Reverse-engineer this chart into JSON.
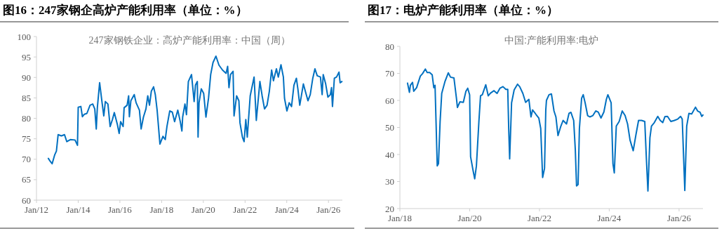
{
  "chart_data": [
    {
      "type": "line",
      "title": "图16：247家钢企高炉产能利用率（单位：%）",
      "subtitle": "247家钢铁企业：高炉产能利用率：中国（周）",
      "xlim": [
        "2012-01-01",
        "2026-09-01"
      ],
      "ylim": [
        60,
        100
      ],
      "yticks": [
        60,
        65,
        70,
        75,
        80,
        85,
        90,
        95,
        100
      ],
      "xticks": [
        {
          "value": "2012-01-01",
          "label": "Jan/12"
        },
        {
          "value": "2014-01-01",
          "label": "Jan/14"
        },
        {
          "value": "2016-01-01",
          "label": "Jan/16"
        },
        {
          "value": "2018-01-01",
          "label": "Jan/18"
        },
        {
          "value": "2020-01-01",
          "label": "Jan/20"
        },
        {
          "value": "2022-01-01",
          "label": "Jan/22"
        },
        {
          "value": "2024-01-01",
          "label": "Jan/24"
        },
        {
          "value": "2026-01-01",
          "label": "Jan/26"
        }
      ],
      "grid": false,
      "series": [
        {
          "color": "#0070c0",
          "x": [
            "2012-07-27",
            "2012-09-02",
            "2012-10-01",
            "2012-11-16",
            "2012-12-15",
            "2013-01-14",
            "2013-03-12",
            "2013-05-06",
            "2013-06-15",
            "2013-08-16",
            "2013-11-06",
            "2013-12-19",
            "2014-01-01",
            "2014-02-16",
            "2014-03-15",
            "2014-04-18",
            "2014-06-02",
            "2014-07-27",
            "2014-09-12",
            "2014-10-18",
            "2014-11-13",
            "2014-12-02",
            "2015-01-11",
            "2015-02-23",
            "2015-03-25",
            "2015-04-21",
            "2015-06-05",
            "2015-07-14",
            "2015-08-23",
            "2015-09-25",
            "2015-11-16",
            "2015-12-19",
            "2016-01-14",
            "2016-02-26",
            "2016-03-15",
            "2016-05-06",
            "2016-06-02",
            "2016-06-15",
            "2016-07-11",
            "2016-09-08",
            "2016-10-11",
            "2016-12-08",
            "2017-01-07",
            "2017-02-16",
            "2017-04-01",
            "2017-05-03",
            "2017-06-02",
            "2017-07-04",
            "2017-08-13",
            "2017-09-12",
            "2017-10-14",
            "2017-12-02",
            "2018-01-24",
            "2018-03-05",
            "2018-04-04",
            "2018-05-23",
            "2018-07-07",
            "2018-08-16",
            "2018-10-11",
            "2018-11-23",
            "2018-12-22",
            "2019-01-04",
            "2019-02-13",
            "2019-03-12",
            "2019-04-14",
            "2019-06-08",
            "2019-07-07",
            "2019-07-24",
            "2019-08-16",
            "2019-09-18",
            "2019-10-01",
            "2019-10-18",
            "2019-11-26",
            "2020-01-07",
            "2020-02-16",
            "2020-04-01",
            "2020-05-09",
            "2020-06-18",
            "2020-08-09",
            "2020-10-01",
            "2020-12-02",
            "2021-02-03",
            "2021-03-02",
            "2021-03-25",
            "2021-04-21",
            "2021-06-05",
            "2021-06-22",
            "2021-08-06",
            "2021-09-15",
            "2021-10-04",
            "2021-11-16",
            "2021-12-15",
            "2022-01-14",
            "2022-02-09",
            "2022-04-01",
            "2022-06-08",
            "2022-07-17",
            "2022-09-18",
            "2022-10-27",
            "2022-12-08",
            "2023-01-21",
            "2023-03-02",
            "2023-04-11",
            "2023-05-13",
            "2023-07-04",
            "2023-08-06",
            "2023-09-22",
            "2023-11-03",
            "2023-11-23",
            "2024-01-04",
            "2024-02-13",
            "2024-03-25",
            "2024-05-06",
            "2024-06-18",
            "2024-07-14",
            "2024-08-16",
            "2024-10-18",
            "2024-11-26",
            "2025-01-07",
            "2025-02-16",
            "2025-04-01",
            "2025-05-09",
            "2025-06-18",
            "2025-08-13",
            "2025-09-12",
            "2025-10-01",
            "2025-11-13",
            "2025-12-22",
            "2026-02-03",
            "2026-02-23",
            "2026-03-12",
            "2026-04-14",
            "2026-05-23",
            "2026-07-04",
            "2026-07-24",
            "2026-08-23"
          ],
          "values": [
            70.2,
            69.4,
            68.9,
            71.1,
            72.0,
            76.0,
            75.7,
            76.0,
            74.3,
            74.8,
            74.7,
            73.4,
            82.7,
            82.9,
            80.4,
            81.0,
            81.2,
            83.2,
            83.5,
            82.3,
            77.4,
            82.6,
            88.7,
            83.8,
            80.6,
            84.1,
            83.5,
            78.0,
            79.7,
            81.4,
            78.6,
            76.3,
            79.2,
            78.0,
            82.6,
            83.2,
            85.5,
            80.4,
            84.3,
            85.8,
            83.8,
            82.0,
            77.4,
            80.3,
            82.3,
            85.5,
            83.2,
            86.6,
            87.7,
            85.8,
            82.0,
            73.7,
            75.6,
            74.8,
            78.0,
            81.8,
            81.5,
            79.2,
            82.0,
            79.2,
            76.9,
            80.3,
            83.5,
            80.9,
            89.0,
            90.7,
            86.6,
            84.1,
            88.1,
            89.0,
            75.4,
            83.8,
            87.2,
            86.1,
            80.3,
            84.9,
            90.7,
            93.6,
            95.2,
            93.0,
            91.8,
            91.0,
            92.7,
            87.5,
            90.7,
            91.5,
            80.6,
            85.5,
            84.3,
            78.9,
            75.4,
            74.3,
            79.7,
            75.4,
            85.5,
            90.1,
            79.5,
            89.0,
            85.5,
            82.3,
            83.2,
            86.6,
            91.8,
            89.2,
            92.1,
            90.1,
            93.1,
            90.1,
            84.9,
            81.8,
            83.8,
            82.9,
            88.1,
            89.8,
            87.2,
            83.2,
            88.4,
            86.4,
            84.3,
            85.8,
            89.8,
            92.1,
            90.4,
            90.1,
            85.8,
            90.7,
            88.4,
            85.2,
            85.8,
            87.5,
            82.9,
            89.8,
            90.1,
            91.3,
            88.7,
            89.0
          ]
        }
      ]
    },
    {
      "type": "line",
      "title": "图17：电炉产能利用率（单位：%）",
      "subtitle": "中国:产能利用率:电炉",
      "xlim": [
        "2018-01-01",
        "2026-09-08"
      ],
      "ylim": [
        20,
        80
      ],
      "yticks": [
        20,
        30,
        40,
        50,
        60,
        70,
        80
      ],
      "xticks": [
        {
          "value": "2018-01-01",
          "label": "Jan/18"
        },
        {
          "value": "2020-01-01",
          "label": "Jan/20"
        },
        {
          "value": "2022-01-01",
          "label": "Jan/22"
        },
        {
          "value": "2024-01-01",
          "label": "Jan/24"
        },
        {
          "value": "2026-01-01",
          "label": "Jan/26"
        }
      ],
      "grid": false,
      "series": [
        {
          "color": "#0070c0",
          "x": [
            "2018-03-22",
            "2018-04-11",
            "2018-04-21",
            "2018-05-13",
            "2018-05-26",
            "2018-06-25",
            "2018-08-03",
            "2018-08-26",
            "2018-09-25",
            "2018-10-14",
            "2018-11-09",
            "2018-12-05",
            "2018-12-22",
            "2019-01-04",
            "2019-01-27",
            "2019-02-09",
            "2019-02-26",
            "2019-03-15",
            "2019-04-17",
            "2019-05-23",
            "2019-06-15",
            "2019-07-21",
            "2019-08-16",
            "2019-08-26",
            "2019-09-22",
            "2019-10-27",
            "2019-11-23",
            "2019-12-12",
            "2020-01-01",
            "2020-01-11",
            "2020-02-06",
            "2020-02-23",
            "2020-03-12",
            "2020-04-07",
            "2020-04-24",
            "2020-05-13",
            "2020-06-18",
            "2020-07-14",
            "2020-08-06",
            "2020-09-12",
            "2020-10-14",
            "2020-11-13",
            "2020-12-15",
            "2021-01-14",
            "2021-02-03",
            "2021-02-13",
            "2021-02-23",
            "2021-03-15",
            "2021-04-11",
            "2021-05-16",
            "2021-06-08",
            "2021-07-11",
            "2021-08-09",
            "2021-09-12",
            "2021-10-04",
            "2021-10-21",
            "2021-11-26",
            "2021-12-25",
            "2022-01-14",
            "2022-02-03",
            "2022-02-23",
            "2022-03-08",
            "2022-03-15",
            "2022-04-11",
            "2022-05-06",
            "2022-06-02",
            "2022-06-22",
            "2022-07-14",
            "2022-08-13",
            "2022-09-05",
            "2022-10-11",
            "2022-11-06",
            "2022-11-26",
            "2022-12-25",
            "2023-01-11",
            "2023-01-24",
            "2023-02-09",
            "2023-02-23",
            "2023-03-18",
            "2023-04-04",
            "2023-04-24",
            "2023-05-20",
            "2023-06-12",
            "2023-07-14",
            "2023-08-13",
            "2023-09-08",
            "2023-10-07",
            "2023-11-06",
            "2023-12-02",
            "2023-12-18",
            "2024-01-21",
            "2024-02-09",
            "2024-02-23",
            "2024-03-15",
            "2024-04-14",
            "2024-05-16",
            "2024-06-15",
            "2024-07-11",
            "2024-08-06",
            "2024-09-08",
            "2024-10-07",
            "2024-11-03",
            "2024-12-05",
            "2025-01-07",
            "2025-01-24",
            "2025-02-09",
            "2025-03-02",
            "2025-03-18",
            "2025-04-17",
            "2025-05-23",
            "2025-06-18",
            "2025-07-14",
            "2025-08-06",
            "2025-09-02",
            "2025-10-07",
            "2025-11-13",
            "2025-12-18",
            "2026-01-17",
            "2026-02-03",
            "2026-02-20",
            "2026-03-02",
            "2026-03-22",
            "2026-04-14",
            "2026-05-13",
            "2026-06-22",
            "2026-07-14",
            "2026-08-09",
            "2026-08-26",
            "2026-09-08"
          ],
          "values": [
            66.4,
            63.0,
            65.6,
            66.7,
            63.4,
            64.7,
            69.0,
            69.9,
            71.6,
            70.3,
            70.3,
            69.5,
            64.7,
            65.6,
            35.8,
            36.6,
            52.2,
            62.6,
            66.9,
            70.2,
            68.6,
            68.3,
            60.8,
            57.4,
            59.5,
            59.3,
            63.4,
            64.5,
            62.1,
            39.2,
            34.1,
            31.0,
            35.8,
            52.2,
            61.7,
            62.1,
            65.8,
            61.7,
            62.7,
            63.6,
            62.6,
            64.5,
            65.1,
            64.1,
            64.1,
            49.6,
            38.4,
            59.1,
            63.9,
            66.0,
            65.1,
            62.6,
            59.3,
            60.4,
            53.9,
            56.5,
            54.8,
            53.5,
            49.6,
            31.5,
            34.9,
            56.5,
            60.0,
            62.1,
            62.4,
            56.1,
            53.9,
            47.0,
            50.5,
            52.6,
            51.3,
            55.2,
            55.6,
            52.6,
            41.8,
            28.4,
            28.9,
            49.6,
            60.8,
            62.1,
            59.1,
            54.4,
            53.9,
            54.4,
            56.1,
            55.7,
            53.5,
            55.7,
            60.4,
            62.1,
            59.1,
            36.6,
            33.2,
            50.5,
            52.2,
            56.1,
            54.4,
            51.3,
            45.3,
            41.4,
            47.4,
            52.6,
            52.6,
            52.2,
            38.4,
            26.5,
            46.2,
            50.5,
            51.8,
            54.1,
            52.6,
            51.8,
            54.0,
            54.1,
            52.2,
            52.6,
            53.1,
            54.1,
            53.1,
            36.6,
            26.7,
            50.5,
            55.2,
            55.0,
            57.5,
            56.1,
            55.6,
            54.1,
            54.6
          ]
        }
      ]
    }
  ]
}
